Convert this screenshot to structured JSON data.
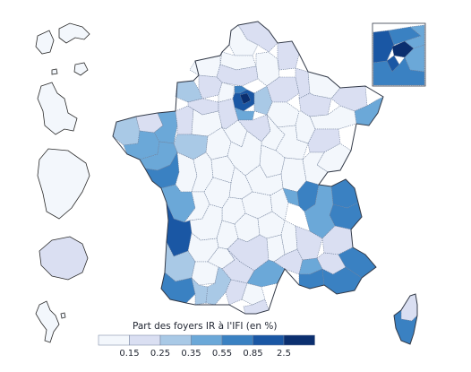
{
  "legend": {
    "title": "Part des foyers IR à l'IFI (en %)",
    "ticks": [
      "0.15",
      "0.25",
      "0.35",
      "0.55",
      "0.85",
      "2.5"
    ],
    "colors": [
      "#f3f7fc",
      "#dadff2",
      "#a9c9e6",
      "#6ba8d8",
      "#3a81c2",
      "#1a57a4",
      "#0b2f6f"
    ]
  },
  "classes": {
    "c0": "#f3f7fc",
    "c1": "#dadff2",
    "c2": "#a9c9e6",
    "c3": "#6ba8d8",
    "c4": "#3a81c2",
    "c5": "#1a57a4",
    "c6": "#0b2f6f"
  }
}
